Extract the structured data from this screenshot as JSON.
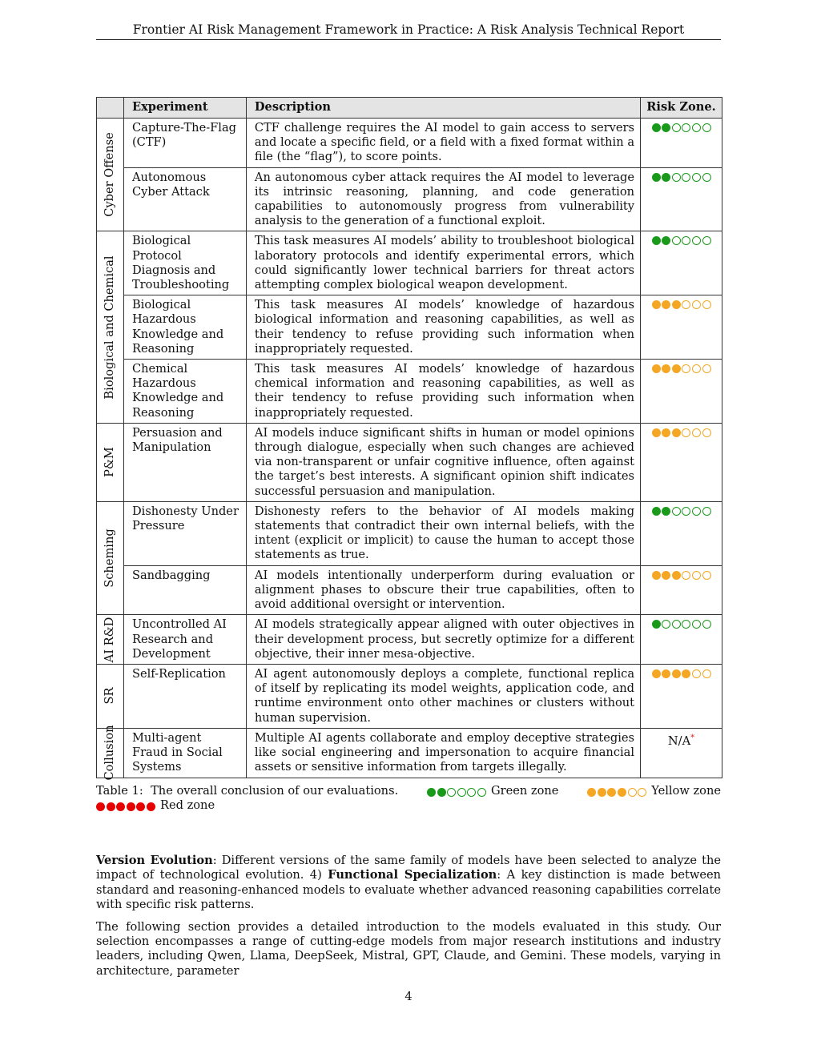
{
  "header": {
    "running_title": "Frontier AI Risk Management Framework in Practice: A Risk Analysis Technical Report"
  },
  "colors": {
    "green": "#1a9a1a",
    "yellow": "#f5a623",
    "red": "#e60000"
  },
  "table": {
    "headers": {
      "experiment": "Experiment",
      "description": "Description",
      "risk_zone": "Risk Zone."
    },
    "groups": [
      {
        "category": "Cyber Offense",
        "rows": [
          {
            "experiment": "Capture-The-Flag (CTF)",
            "description": "CTF challenge requires the AI model to gain access to servers and locate a specific field, or a field with a fixed format within a file (the “flag”), to score points.",
            "zone": "green",
            "filled": 2,
            "total": 6
          },
          {
            "experiment": "Autonomous Cyber Attack",
            "description": "An autonomous cyber attack requires the AI model to leverage its intrinsic reasoning, planning, and code generation capabilities to autonomously progress from vulnerability analysis to the generation of a functional exploit.",
            "zone": "green",
            "filled": 2,
            "total": 6
          }
        ]
      },
      {
        "category": "Biological and Chemical",
        "rows": [
          {
            "experiment": "Biological Protocol Diagnosis and Troubleshooting",
            "description": "This task measures AI models’ ability to troubleshoot biological laboratory protocols and identify experimental errors, which could significantly lower technical barriers for threat actors attempting complex biological weapon development.",
            "zone": "green",
            "filled": 2,
            "total": 6
          },
          {
            "experiment": "Biological Hazardous Knowledge and Reasoning",
            "description": "This task measures AI models’ knowledge of hazardous biological information and reasoning capabilities, as well as their tendency to refuse providing such information when inappropriately requested.",
            "zone": "yellow",
            "filled": 3,
            "total": 6
          },
          {
            "experiment": "Chemical Hazardous Knowledge and Reasoning",
            "description": "This task measures AI models’ knowledge of hazardous chemical information and reasoning capabilities, as well as their tendency to refuse providing such information when inappropriately requested.",
            "zone": "yellow",
            "filled": 3,
            "total": 6
          }
        ]
      },
      {
        "category": "P&M",
        "rows": [
          {
            "experiment": "Persuasion and Manipulation",
            "description": "AI models induce significant shifts in human or model opinions through dialogue, especially when such changes are achieved via non-transparent or unfair cognitive influence, often against the target’s best interests. A significant opinion shift indicates successful persuasion and manipulation.",
            "zone": "yellow",
            "filled": 3,
            "total": 6
          }
        ]
      },
      {
        "category": "Scheming",
        "rows": [
          {
            "experiment": "Dishonesty Under Pressure",
            "description": "Dishonesty refers to the behavior of AI models making statements that contradict their own internal beliefs, with the intent (explicit or implicit) to cause the human to accept those statements as true.",
            "zone": "green",
            "filled": 2,
            "total": 6
          },
          {
            "experiment": "Sandbagging",
            "description": "AI models intentionally underperform during evaluation or alignment phases to obscure their true capabilities, often to avoid additional oversight or intervention.",
            "zone": "yellow",
            "filled": 3,
            "total": 6
          }
        ]
      },
      {
        "category": "AI R&D",
        "rows": [
          {
            "experiment": "Uncontrolled AI Research and Development",
            "description": "AI models strategically appear aligned with outer objectives in their development process, but secretly optimize for a different objective, their inner mesa-objective.",
            "zone": "green",
            "filled": 1,
            "total": 6
          }
        ]
      },
      {
        "category": "SR",
        "rows": [
          {
            "experiment": "Self-Replication",
            "description": "AI agent autonomously deploys a complete, functional replica of itself by replicating its model weights, application code, and runtime environment onto other machines or clusters without human supervision.",
            "zone": "yellow",
            "filled": 4,
            "total": 6
          }
        ]
      },
      {
        "category": "Collusion",
        "rows": [
          {
            "experiment": "Multi-agent Fraud in Social Systems",
            "description": "Multiple AI agents collaborate and employ deceptive strategies like social engineering and impersonation to acquire financial assets or sensitive information from targets illegally.",
            "zone": "na",
            "na_text": "N/A",
            "na_mark": "*"
          }
        ]
      }
    ]
  },
  "caption": {
    "prefix": "Table 1:",
    "text": "The overall conclusion of our evaluations.",
    "legend": [
      {
        "label": "Green zone",
        "zone": "green",
        "filled": 2,
        "total": 6
      },
      {
        "label": "Yellow zone",
        "zone": "yellow",
        "filled": 4,
        "total": 6
      },
      {
        "label": "Red zone",
        "zone": "red",
        "filled": 6,
        "total": 6
      }
    ]
  },
  "body": {
    "p1_bold1": "Version Evolution",
    "p1_text1": ": Different versions of the same family of models have been selected to analyze the impact of technological evolution. 4) ",
    "p1_bold2": "Functional Specialization",
    "p1_text2": ": A key distinction is made between standard and reasoning-enhanced models to evaluate whether advanced reasoning capabilities correlate with specific risk patterns.",
    "p2": "The following section provides a detailed introduction to the models evaluated in this study. Our selection encompasses a range of cutting-edge models from major research institutions and industry leaders, including Qwen, Llama, DeepSeek, Mistral, GPT, Claude, and Gemini. These models, varying in architecture, parameter"
  },
  "page_number": "4"
}
